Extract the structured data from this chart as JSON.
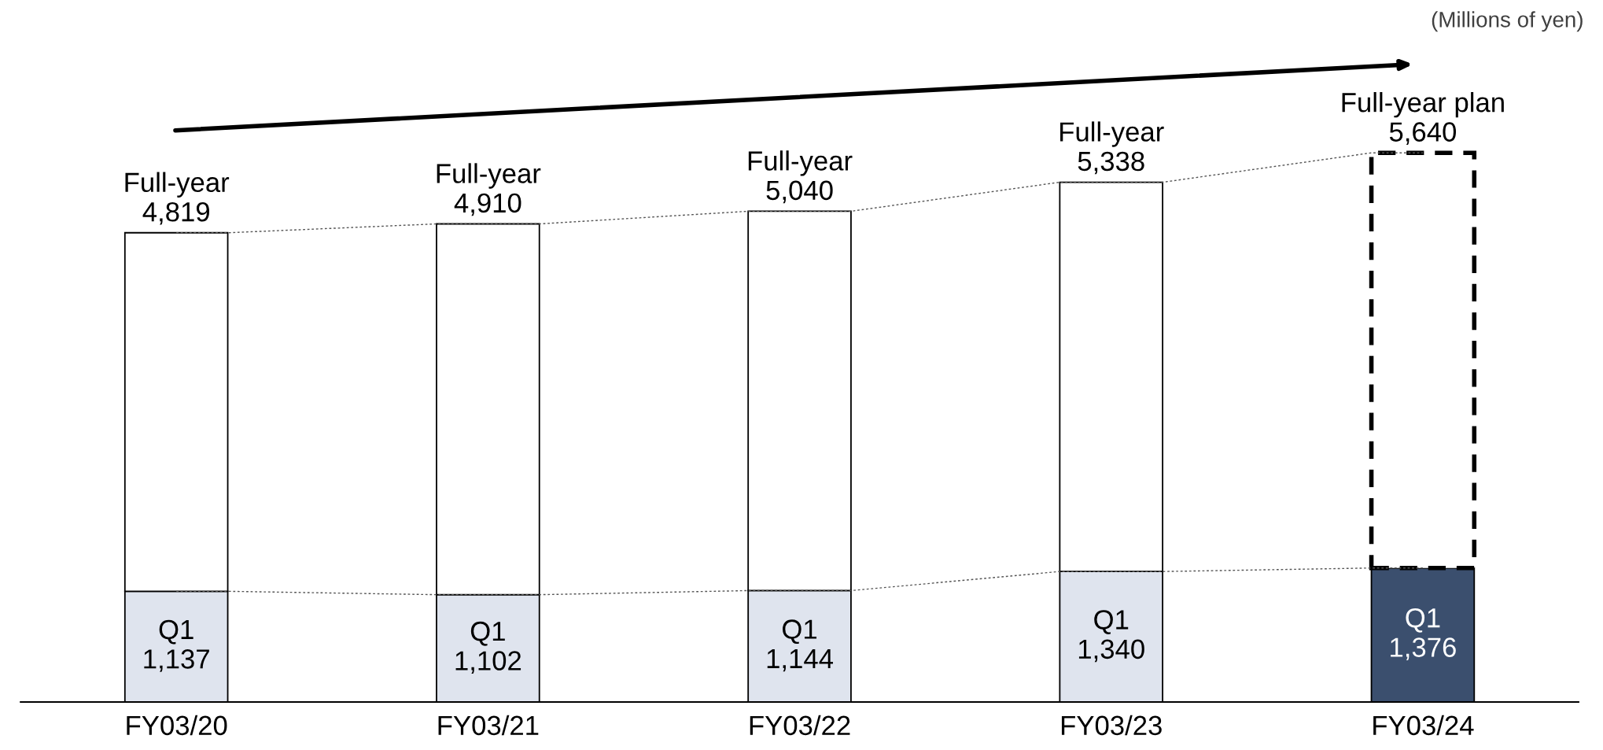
{
  "chart_data": {
    "type": "bar",
    "categories": [
      "FY03/20",
      "FY03/21",
      "FY03/22",
      "FY03/23",
      "FY03/24"
    ],
    "stacked": true,
    "tick_labels": "x",
    "grid": false,
    "annotations": [
      "(Millions of yen)"
    ],
    "totals": [
      "Full-year\n4,819",
      "Full-year\n4,910",
      "Full-year\n5,040",
      "Full-year\n5,338",
      "Full-year plan\n5,640"
    ],
    "series": [
      {
        "colors": [
          "#dfe4ee",
          "#dfe4ee",
          "#dfe4ee",
          "#dfe4ee",
          "#3b4f6e"
        ],
        "values": [
          1137,
          1102,
          1144,
          1340,
          1376
        ],
        "value_labels": [
          "Q1\n1,137",
          "Q1\n1,102",
          "Q1\n1,144",
          "Q1\n1,340",
          "Q1\n1,376"
        ]
      },
      {
        "color": "#ffffff",
        "values": [
          3682,
          3808,
          3896,
          3998,
          null
        ]
      },
      {
        "color": "#ffffff",
        "line_style": "dashed",
        "values": [
          null,
          null,
          null,
          null,
          4264
        ]
      },
      {
        "type": "line",
        "color": "#555555",
        "line_style": "dotted",
        "marker": "none",
        "values": [
          4819,
          4910,
          5040,
          5338,
          5640
        ]
      },
      {
        "type": "line",
        "color": "#555555",
        "line_style": "dotted",
        "marker": "none",
        "values": [
          1137,
          1102,
          1144,
          1340,
          1376
        ]
      }
    ]
  }
}
